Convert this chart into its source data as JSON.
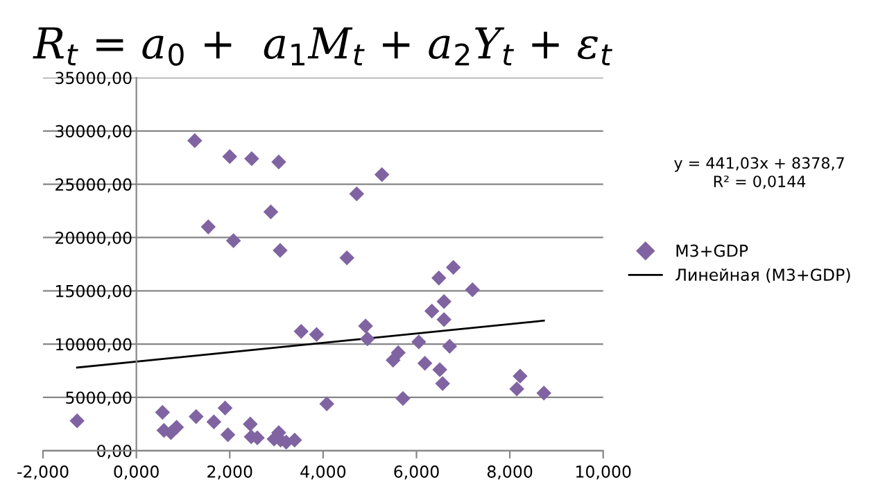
{
  "chart_data": {
    "type": "scatter",
    "title": "R$_{t}$ = a$_{0}$ +  a$_{1}$M$_{t}$ + a$_{2}$Y$_{t}$ + ε$_{t}$",
    "annotations": [
      "y = 441,03x + 8378,7",
      "R² = 0,0144"
    ],
    "series": [
      {
        "name": "M3+GDP",
        "color": "#8064a2",
        "marker": "diamond",
        "x": [
          -1.27,
          1.25,
          1.54,
          2.0,
          2.08,
          2.47,
          2.88,
          3.05,
          3.08,
          3.53,
          3.86,
          4.08,
          4.51,
          4.72,
          5.26,
          4.91,
          4.95,
          5.5,
          5.61,
          5.71,
          6.05,
          6.18,
          6.33,
          6.48,
          6.5,
          6.59,
          6.59,
          6.56,
          6.71,
          6.79,
          7.2,
          8.22,
          8.15,
          8.73,
          0.56,
          0.59,
          0.74,
          0.86,
          1.28,
          1.66,
          1.9,
          1.96,
          2.44,
          2.46,
          2.59,
          2.95,
          3.05,
          3.09,
          3.21,
          3.39
        ],
        "values": [
          2800,
          29100,
          21000,
          27600,
          19700,
          27400,
          22400,
          27100,
          18800,
          11200,
          10900,
          4400,
          18100,
          24100,
          25900,
          11700,
          10500,
          8500,
          9200,
          4900,
          10200,
          8200,
          13100,
          16200,
          7600,
          14000,
          12300,
          6300,
          9800,
          17200,
          15100,
          7000,
          5800,
          5400,
          3600,
          1900,
          1700,
          2200,
          3200,
          2700,
          4000,
          1500,
          2500,
          1300,
          1200,
          1100,
          1700,
          1000,
          800,
          1000
        ]
      },
      {
        "name": "Линейная (M3+GDP)",
        "color": "#000000",
        "type": "line",
        "marker": "none",
        "line_style": "solid",
        "x": [
          -1.27,
          8.73
        ],
        "values": [
          7800,
          12200
        ]
      }
    ],
    "xlim": [
      -2,
      10
    ],
    "xticks": [
      {
        "value": -2,
        "label": "-2,000"
      },
      {
        "value": 0,
        "label": "0,000"
      },
      {
        "value": 2,
        "label": "2,000"
      },
      {
        "value": 4,
        "label": "4,000"
      },
      {
        "value": 6,
        "label": "6,000"
      },
      {
        "value": 8,
        "label": "8,000"
      },
      {
        "value": 10,
        "label": "10,000"
      }
    ],
    "ylim": [
      0,
      35000
    ],
    "yticks": [
      {
        "value": 0,
        "label": "0,00"
      },
      {
        "value": 5000,
        "label": "5000,00"
      },
      {
        "value": 10000,
        "label": "10000,00"
      },
      {
        "value": 15000,
        "label": "15000,00"
      },
      {
        "value": 20000,
        "label": "20000,00"
      },
      {
        "value": 25000,
        "label": "25000,00"
      },
      {
        "value": 30000,
        "label": "30000,00"
      },
      {
        "value": 35000,
        "label": "35000,00"
      }
    ],
    "grid": "y",
    "legend": "right"
  }
}
